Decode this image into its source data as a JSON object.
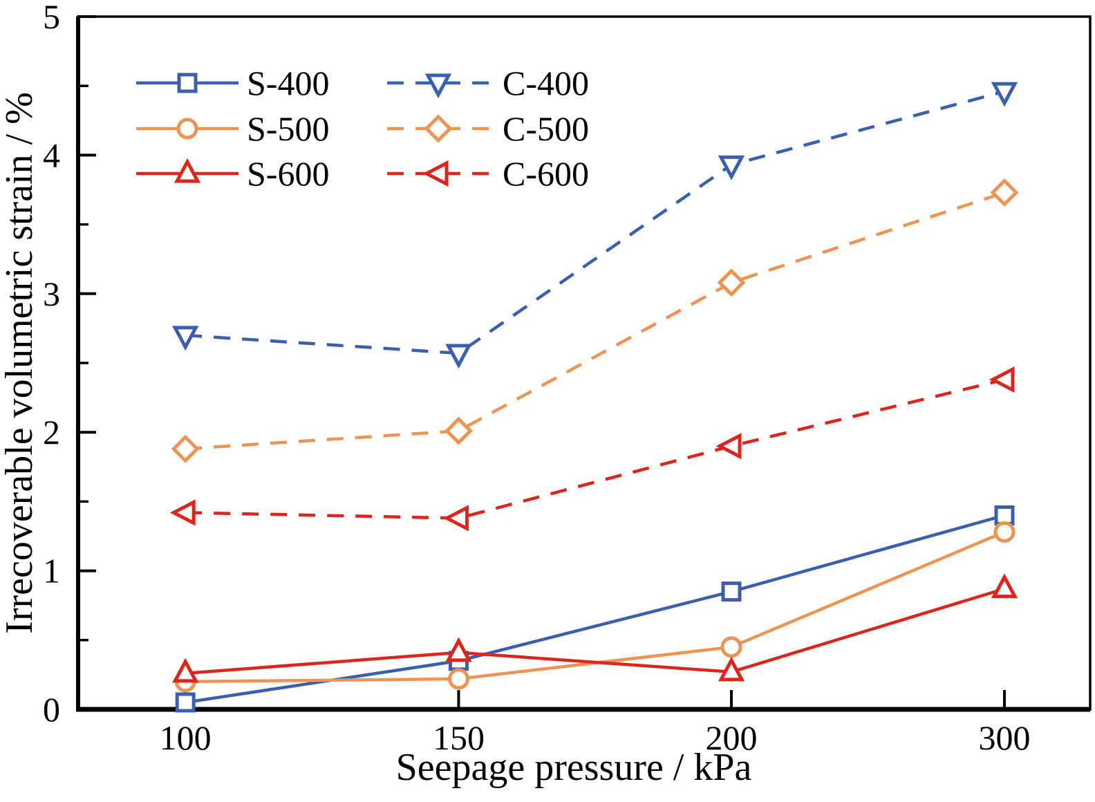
{
  "figure": {
    "background": "#ffffff",
    "axis_color": "#000000",
    "text_color": "#000000"
  },
  "chart_data": {
    "type": "line",
    "title": "",
    "xlabel": "Seepage pressure / kPa",
    "ylabel": "Irrecoverable volumetric strain / %",
    "x_categories": [
      "100",
      "150",
      "200",
      "300"
    ],
    "x_values": [
      100,
      150,
      200,
      300
    ],
    "ylim": [
      0,
      5
    ],
    "y_ticks": [
      "0",
      "1",
      "2",
      "3",
      "4",
      "5"
    ],
    "y_minor_tick_step": 0.5,
    "grid": false,
    "legend": {
      "position": "top-left inside plot, two columns",
      "columns": [
        [
          "S-400",
          "S-500",
          "S-600"
        ],
        [
          "C-400",
          "C-500",
          "C-600"
        ]
      ]
    },
    "series": [
      {
        "name": "S-400",
        "color": "#3B5FB0",
        "line_style": "solid",
        "marker": "square",
        "values": [
          0.05,
          0.35,
          0.85,
          1.4
        ]
      },
      {
        "name": "S-500",
        "color": "#ED9455",
        "line_style": "solid",
        "marker": "circle",
        "values": [
          0.2,
          0.22,
          0.45,
          1.28
        ]
      },
      {
        "name": "S-600",
        "color": "#DC251C",
        "line_style": "solid",
        "marker": "triangle-up",
        "values": [
          0.26,
          0.41,
          0.27,
          0.87
        ]
      },
      {
        "name": "C-400",
        "color": "#3B5FB0",
        "line_style": "dashed",
        "marker": "triangle-down",
        "values": [
          2.7,
          2.57,
          3.93,
          4.46
        ]
      },
      {
        "name": "C-500",
        "color": "#ED9455",
        "line_style": "dashed",
        "marker": "diamond",
        "values": [
          1.88,
          2.01,
          3.08,
          3.73
        ]
      },
      {
        "name": "C-600",
        "color": "#DC251C",
        "line_style": "dashed",
        "marker": "triangle-left",
        "values": [
          1.42,
          1.38,
          1.9,
          2.38
        ]
      }
    ]
  }
}
